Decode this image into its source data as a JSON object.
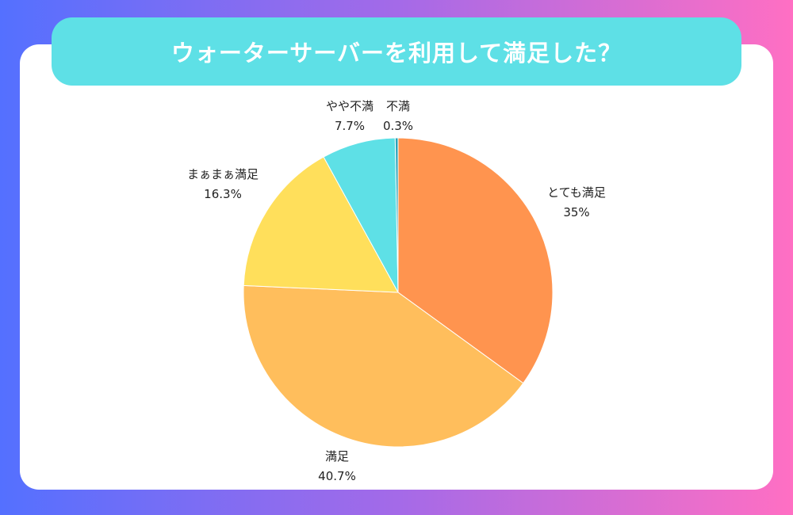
{
  "title": "ウォーターサーバーを利用して満足した？",
  "colors": {
    "title_bar": "#5ee0e6",
    "background_left": "#5470ff",
    "background_right": "#ff6fc3"
  },
  "chart_data": {
    "type": "pie",
    "title": "ウォーターサーバーを利用して満足した？",
    "start": "12 o'clock, clockwise",
    "slices": [
      {
        "label": "とても満足",
        "value": 35,
        "value_text": "35%",
        "color": "#ff944f"
      },
      {
        "label": "満足",
        "value": 40.7,
        "value_text": "40.7%",
        "color": "#ffbe5c"
      },
      {
        "label": "まぁまぁ満足",
        "value": 16.3,
        "value_text": "16.3%",
        "color": "#ffdf5b"
      },
      {
        "label": "やや不満",
        "value": 7.7,
        "value_text": "7.7%",
        "color": "#5ee0e6"
      },
      {
        "label": "不満",
        "value": 0.3,
        "value_text": "0.3%",
        "color": "#2ba3b8"
      }
    ]
  }
}
